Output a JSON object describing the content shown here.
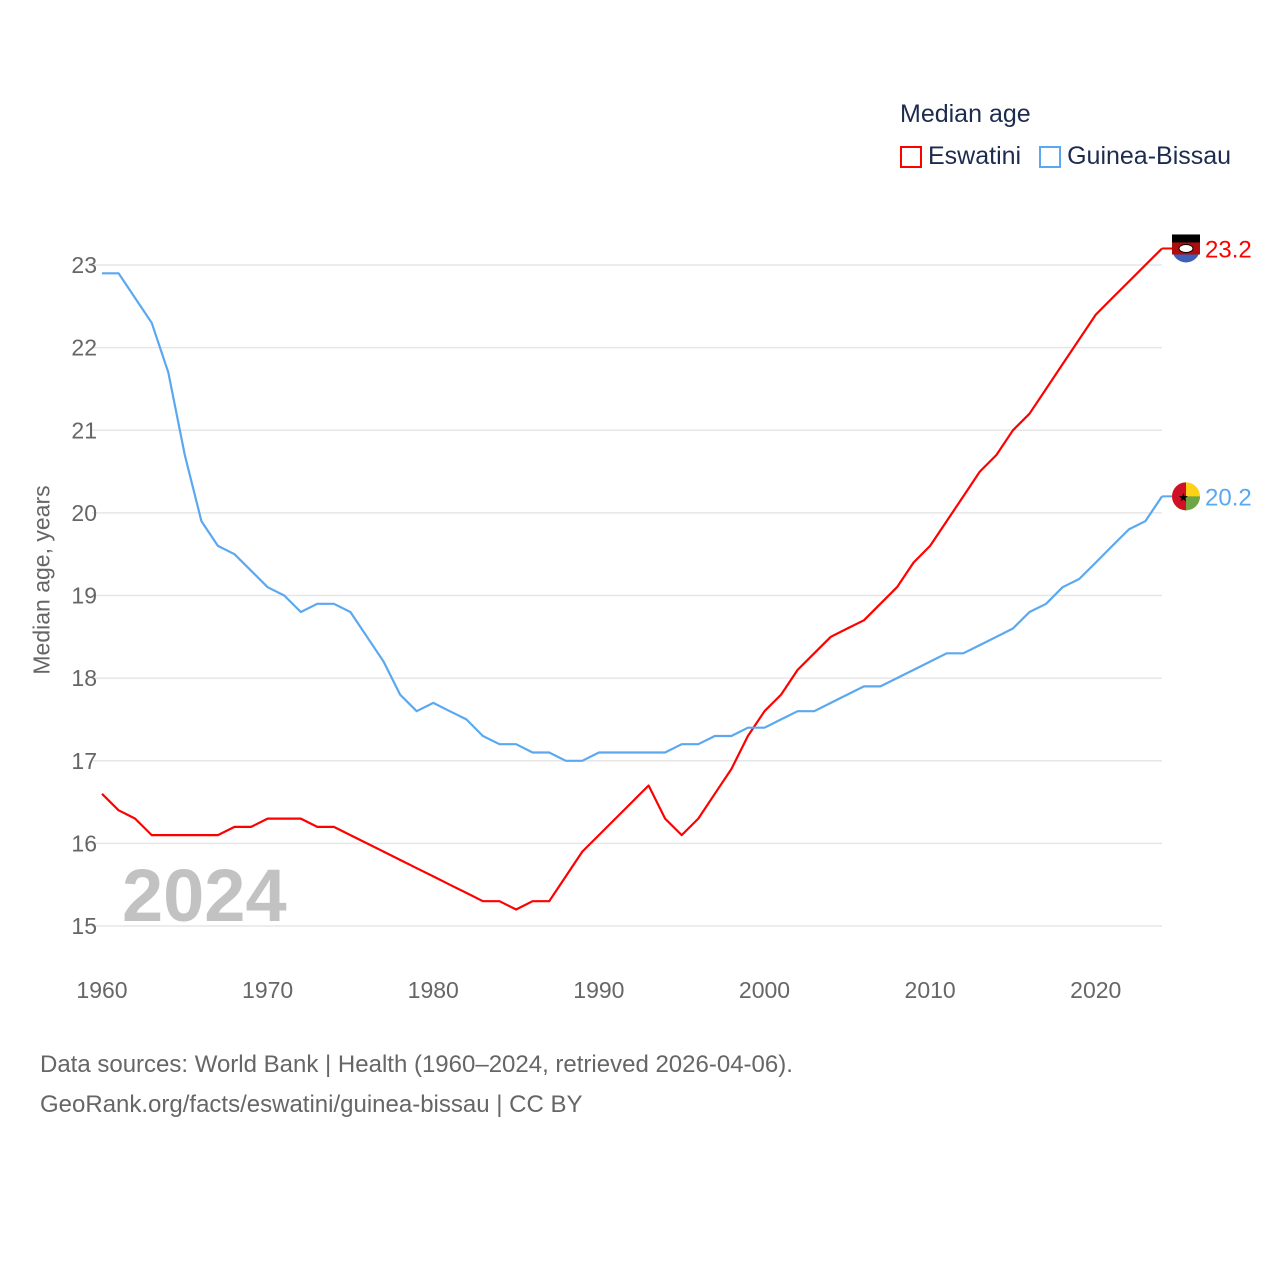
{
  "chart_data": {
    "type": "line",
    "title": "Median age",
    "xlabel": "",
    "ylabel": "Median age, years",
    "xlim": [
      1960,
      2024
    ],
    "ylim": [
      15,
      23
    ],
    "x_ticks": [
      1960,
      1970,
      1980,
      1990,
      2000,
      2010,
      2020
    ],
    "y_ticks": [
      15,
      16,
      17,
      18,
      19,
      20,
      21,
      22,
      23
    ],
    "grid": true,
    "legend_position": "top-right",
    "year_watermark": "2024",
    "x_start": 1960,
    "series": [
      {
        "name": "Eswatini",
        "color": "#ff0000",
        "end_label": "23.2",
        "values": [
          16.6,
          16.4,
          16.3,
          16.1,
          16.1,
          16.1,
          16.1,
          16.1,
          16.2,
          16.2,
          16.3,
          16.3,
          16.3,
          16.2,
          16.2,
          16.1,
          16.0,
          15.9,
          15.8,
          15.7,
          15.6,
          15.5,
          15.4,
          15.3,
          15.3,
          15.2,
          15.3,
          15.3,
          15.6,
          15.9,
          16.1,
          16.3,
          16.5,
          16.7,
          16.3,
          16.1,
          16.3,
          16.6,
          16.9,
          17.3,
          17.6,
          17.8,
          18.1,
          18.3,
          18.5,
          18.6,
          18.7,
          18.9,
          19.1,
          19.4,
          19.6,
          19.9,
          20.2,
          20.5,
          20.7,
          21.0,
          21.2,
          21.5,
          21.8,
          22.1,
          22.4,
          22.6,
          22.8,
          23.0,
          23.2
        ]
      },
      {
        "name": "Guinea-Bissau",
        "color": "#5ba8f0",
        "end_label": "20.2",
        "values": [
          22.9,
          22.9,
          22.6,
          22.3,
          21.7,
          20.7,
          19.9,
          19.6,
          19.5,
          19.3,
          19.1,
          19.0,
          18.8,
          18.9,
          18.9,
          18.8,
          18.5,
          18.2,
          17.8,
          17.6,
          17.7,
          17.6,
          17.5,
          17.3,
          17.2,
          17.2,
          17.1,
          17.1,
          17.0,
          17.0,
          17.1,
          17.1,
          17.1,
          17.1,
          17.1,
          17.2,
          17.2,
          17.3,
          17.3,
          17.4,
          17.4,
          17.5,
          17.6,
          17.6,
          17.7,
          17.8,
          17.9,
          17.9,
          18.0,
          18.1,
          18.2,
          18.3,
          18.3,
          18.4,
          18.5,
          18.6,
          18.8,
          18.9,
          19.1,
          19.2,
          19.4,
          19.6,
          19.8,
          19.9,
          20.2
        ]
      }
    ]
  },
  "footer": {
    "line1": "Data sources: World Bank | Health (1960–2024, retrieved 2026-04-06).",
    "line2": "GeoRank.org/facts/eswatini/guinea-bissau | CC BY"
  }
}
